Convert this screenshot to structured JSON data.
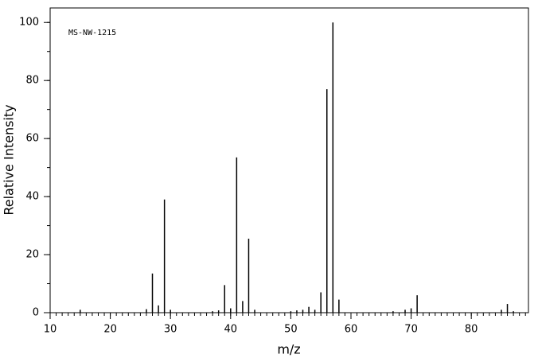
{
  "chart_data": {
    "type": "stick",
    "annotation": "MS-NW-1215",
    "x_label": "m/z",
    "y_label": "Relative Intensity",
    "x": [
      15,
      26,
      27,
      28,
      29,
      30,
      37,
      38,
      39,
      40,
      41,
      42,
      43,
      44,
      50,
      51,
      52,
      53,
      54,
      55,
      56,
      57,
      58,
      67,
      69,
      70,
      71,
      85,
      86,
      87
    ],
    "values": [
      1,
      1.2,
      13.5,
      2.5,
      39,
      1,
      0.5,
      0.8,
      9.5,
      1.5,
      53.5,
      4,
      25.5,
      1,
      0.5,
      0.8,
      1,
      2,
      1,
      7,
      77,
      100,
      4.5,
      0.5,
      1,
      1.5,
      6,
      1,
      3,
      0.5
    ],
    "color": "#000000",
    "xlim": [
      10,
      89.5
    ],
    "ylim": [
      0,
      105
    ],
    "xticks": [
      10,
      20,
      30,
      40,
      50,
      60,
      70,
      80
    ],
    "yticks": [
      0,
      20,
      40,
      60,
      80,
      100
    ]
  }
}
